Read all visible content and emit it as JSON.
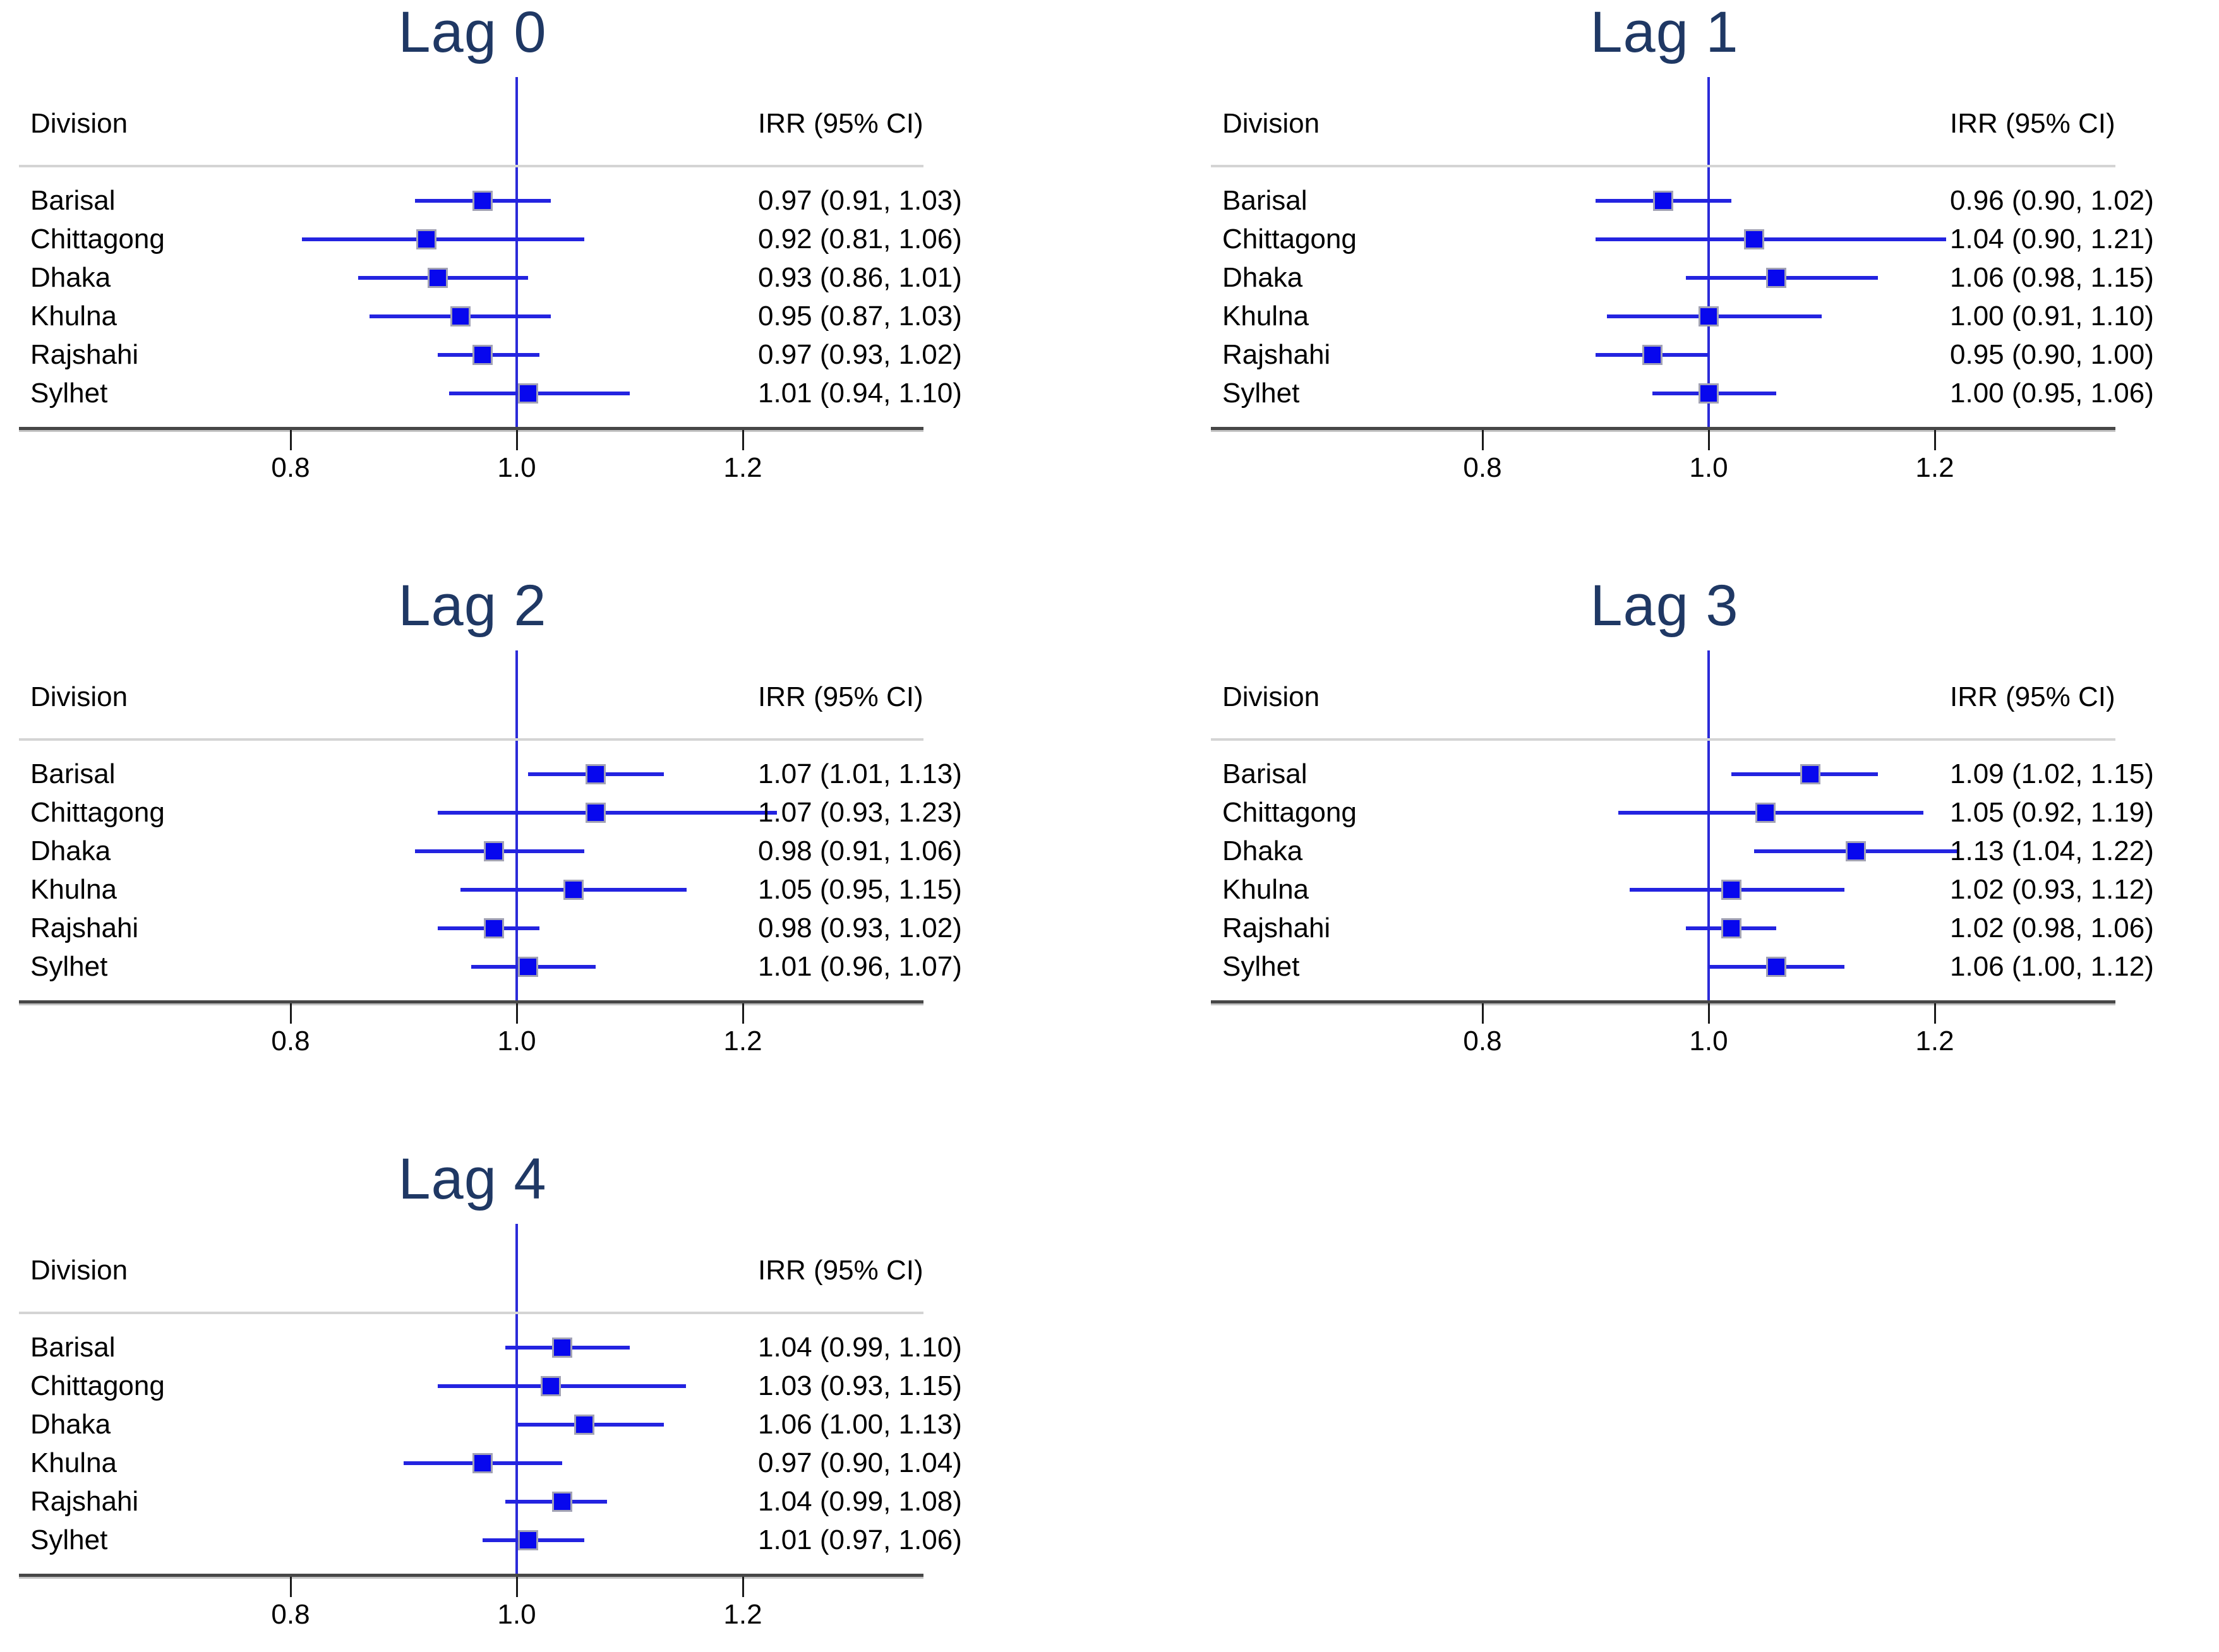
{
  "figure": {
    "column_header_left": "Division",
    "column_header_right": "IRR (95% CI)"
  },
  "colors": {
    "title": "#1f3864",
    "text": "#000000",
    "marker_fill": "#0707ee",
    "marker_border": "#a2a2b4",
    "ci_line": "#2323e0",
    "ref_line": "#2b2bd9",
    "separator": "#d4d4d4",
    "axis": "#474747",
    "tick": "#1a1a1a"
  },
  "chart_data": [
    {
      "type": "scatter",
      "subtype": "forest",
      "title": "Lag 0",
      "xlabel": "",
      "ylabel": "",
      "xticks": [
        "0.8",
        "1.0",
        "1.2"
      ],
      "xlim": [
        0.56,
        1.36
      ],
      "ref_line": 1.0,
      "categories": [
        "Barisal",
        "Chittagong",
        "Dhaka",
        "Khulna",
        "Rajshahi",
        "Sylhet"
      ],
      "rows": [
        {
          "division": "Barisal",
          "irr": 0.97,
          "lo": 0.91,
          "hi": 1.03,
          "ci_label": "0.97 (0.91, 1.03)"
        },
        {
          "division": "Chittagong",
          "irr": 0.92,
          "lo": 0.81,
          "hi": 1.06,
          "ci_label": "0.92 (0.81, 1.06)"
        },
        {
          "division": "Dhaka",
          "irr": 0.93,
          "lo": 0.86,
          "hi": 1.01,
          "ci_label": "0.93 (0.86, 1.01)"
        },
        {
          "division": "Khulna",
          "irr": 0.95,
          "lo": 0.87,
          "hi": 1.03,
          "ci_label": "0.95 (0.87, 1.03)"
        },
        {
          "division": "Rajshahi",
          "irr": 0.97,
          "lo": 0.93,
          "hi": 1.02,
          "ci_label": "0.97 (0.93, 1.02)"
        },
        {
          "division": "Sylhet",
          "irr": 1.01,
          "lo": 0.94,
          "hi": 1.1,
          "ci_label": "1.01 (0.94, 1.10)"
        }
      ]
    },
    {
      "type": "scatter",
      "subtype": "forest",
      "title": "Lag 1",
      "xlabel": "",
      "ylabel": "",
      "xticks": [
        "0.8",
        "1.0",
        "1.2"
      ],
      "xlim": [
        0.56,
        1.36
      ],
      "ref_line": 1.0,
      "categories": [
        "Barisal",
        "Chittagong",
        "Dhaka",
        "Khulna",
        "Rajshahi",
        "Sylhet"
      ],
      "rows": [
        {
          "division": "Barisal",
          "irr": 0.96,
          "lo": 0.9,
          "hi": 1.02,
          "ci_label": "0.96 (0.90, 1.02)"
        },
        {
          "division": "Chittagong",
          "irr": 1.04,
          "lo": 0.9,
          "hi": 1.21,
          "ci_label": "1.04 (0.90, 1.21)"
        },
        {
          "division": "Dhaka",
          "irr": 1.06,
          "lo": 0.98,
          "hi": 1.15,
          "ci_label": "1.06 (0.98, 1.15)"
        },
        {
          "division": "Khulna",
          "irr": 1.0,
          "lo": 0.91,
          "hi": 1.1,
          "ci_label": "1.00 (0.91, 1.10)"
        },
        {
          "division": "Rajshahi",
          "irr": 0.95,
          "lo": 0.9,
          "hi": 1.0,
          "ci_label": "0.95 (0.90, 1.00)"
        },
        {
          "division": "Sylhet",
          "irr": 1.0,
          "lo": 0.95,
          "hi": 1.06,
          "ci_label": "1.00 (0.95, 1.06)"
        }
      ]
    },
    {
      "type": "scatter",
      "subtype": "forest",
      "title": "Lag 2",
      "xlabel": "",
      "ylabel": "",
      "xticks": [
        "0.8",
        "1.0",
        "1.2"
      ],
      "xlim": [
        0.56,
        1.36
      ],
      "ref_line": 1.0,
      "categories": [
        "Barisal",
        "Chittagong",
        "Dhaka",
        "Khulna",
        "Rajshahi",
        "Sylhet"
      ],
      "rows": [
        {
          "division": "Barisal",
          "irr": 1.07,
          "lo": 1.01,
          "hi": 1.13,
          "ci_label": "1.07 (1.01, 1.13)"
        },
        {
          "division": "Chittagong",
          "irr": 1.07,
          "lo": 0.93,
          "hi": 1.23,
          "ci_label": "1.07 (0.93, 1.23)"
        },
        {
          "division": "Dhaka",
          "irr": 0.98,
          "lo": 0.91,
          "hi": 1.06,
          "ci_label": "0.98 (0.91, 1.06)"
        },
        {
          "division": "Khulna",
          "irr": 1.05,
          "lo": 0.95,
          "hi": 1.15,
          "ci_label": "1.05 (0.95, 1.15)"
        },
        {
          "division": "Rajshahi",
          "irr": 0.98,
          "lo": 0.93,
          "hi": 1.02,
          "ci_label": "0.98 (0.93, 1.02)"
        },
        {
          "division": "Sylhet",
          "irr": 1.01,
          "lo": 0.96,
          "hi": 1.07,
          "ci_label": "1.01 (0.96, 1.07)"
        }
      ]
    },
    {
      "type": "scatter",
      "subtype": "forest",
      "title": "Lag 3",
      "xlabel": "",
      "ylabel": "",
      "xticks": [
        "0.8",
        "1.0",
        "1.2"
      ],
      "xlim": [
        0.56,
        1.36
      ],
      "ref_line": 1.0,
      "categories": [
        "Barisal",
        "Chittagong",
        "Dhaka",
        "Khulna",
        "Rajshahi",
        "Sylhet"
      ],
      "rows": [
        {
          "division": "Barisal",
          "irr": 1.09,
          "lo": 1.02,
          "hi": 1.15,
          "ci_label": "1.09 (1.02, 1.15)"
        },
        {
          "division": "Chittagong",
          "irr": 1.05,
          "lo": 0.92,
          "hi": 1.19,
          "ci_label": "1.05 (0.92, 1.19)"
        },
        {
          "division": "Dhaka",
          "irr": 1.13,
          "lo": 1.04,
          "hi": 1.22,
          "ci_label": "1.13 (1.04, 1.22)"
        },
        {
          "division": "Khulna",
          "irr": 1.02,
          "lo": 0.93,
          "hi": 1.12,
          "ci_label": "1.02 (0.93, 1.12)"
        },
        {
          "division": "Rajshahi",
          "irr": 1.02,
          "lo": 0.98,
          "hi": 1.06,
          "ci_label": "1.02 (0.98, 1.06)"
        },
        {
          "division": "Sylhet",
          "irr": 1.06,
          "lo": 1.0,
          "hi": 1.12,
          "ci_label": "1.06 (1.00, 1.12)"
        }
      ]
    },
    {
      "type": "scatter",
      "subtype": "forest",
      "title": "Lag 4",
      "xlabel": "",
      "ylabel": "",
      "xticks": [
        "0.8",
        "1.0",
        "1.2"
      ],
      "xlim": [
        0.56,
        1.36
      ],
      "ref_line": 1.0,
      "categories": [
        "Barisal",
        "Chittagong",
        "Dhaka",
        "Khulna",
        "Rajshahi",
        "Sylhet"
      ],
      "rows": [
        {
          "division": "Barisal",
          "irr": 1.04,
          "lo": 0.99,
          "hi": 1.1,
          "ci_label": "1.04 (0.99, 1.10)"
        },
        {
          "division": "Chittagong",
          "irr": 1.03,
          "lo": 0.93,
          "hi": 1.15,
          "ci_label": "1.03 (0.93, 1.15)"
        },
        {
          "division": "Dhaka",
          "irr": 1.06,
          "lo": 1.0,
          "hi": 1.13,
          "ci_label": "1.06 (1.00, 1.13)"
        },
        {
          "division": "Khulna",
          "irr": 0.97,
          "lo": 0.9,
          "hi": 1.04,
          "ci_label": "0.97 (0.90, 1.04)"
        },
        {
          "division": "Rajshahi",
          "irr": 1.04,
          "lo": 0.99,
          "hi": 1.08,
          "ci_label": "1.04 (0.99, 1.08)"
        },
        {
          "division": "Sylhet",
          "irr": 1.01,
          "lo": 0.97,
          "hi": 1.06,
          "ci_label": "1.01 (0.97, 1.06)"
        }
      ]
    }
  ]
}
